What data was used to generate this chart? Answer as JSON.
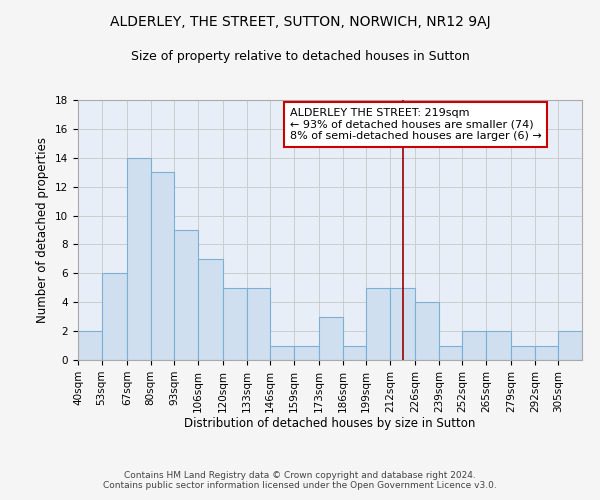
{
  "title": "ALDERLEY, THE STREET, SUTTON, NORWICH, NR12 9AJ",
  "subtitle": "Size of property relative to detached houses in Sutton",
  "xlabel": "Distribution of detached houses by size in Sutton",
  "ylabel": "Number of detached properties",
  "bin_lefts": [
    40,
    53,
    67,
    80,
    93,
    106,
    120,
    133,
    146,
    159,
    173,
    186,
    199,
    212,
    226,
    239,
    252,
    265,
    279,
    292,
    305
  ],
  "bar_heights": [
    2,
    6,
    14,
    13,
    9,
    7,
    5,
    5,
    1,
    1,
    3,
    1,
    5,
    5,
    4,
    1,
    2,
    2,
    1,
    1,
    2
  ],
  "property_size": 219,
  "annotation_text": "ALDERLEY THE STREET: 219sqm\n← 93% of detached houses are smaller (74)\n8% of semi-detached houses are larger (6) →",
  "bar_color": "#cfdff0",
  "bar_edge_color": "#7bafd4",
  "vline_color": "#990000",
  "annotation_box_color": "#ffffff",
  "annotation_box_edge": "#cc0000",
  "grid_color": "#cccccc",
  "bg_color": "#e8eef8",
  "fig_bg_color": "#f5f5f5",
  "ylim": [
    0,
    18
  ],
  "yticks": [
    0,
    2,
    4,
    6,
    8,
    10,
    12,
    14,
    16,
    18
  ],
  "title_fontsize": 10,
  "subtitle_fontsize": 9,
  "label_fontsize": 8.5,
  "tick_fontsize": 7.5,
  "annotation_fontsize": 8,
  "footer_fontsize": 6.5
}
